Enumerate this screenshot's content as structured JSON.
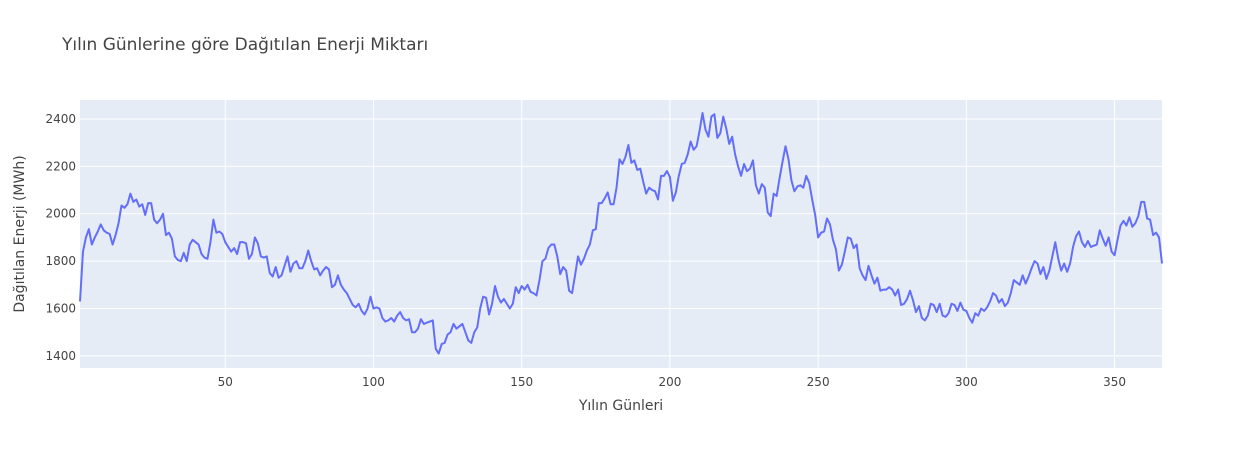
{
  "chart_data": {
    "type": "line",
    "title": "Yılın Günlerine göre Dağıtılan Enerji Miktarı",
    "x_label": "Yılın Günleri",
    "y_label": "Dağıtılan Enerji (MWh)",
    "xlim": [
      1,
      366
    ],
    "xticks": [
      50,
      100,
      150,
      200,
      250,
      300,
      350
    ],
    "ylim": [
      1349,
      2480
    ],
    "yticks": [
      1400,
      1600,
      1800,
      2000,
      2200,
      2400
    ],
    "grid": true,
    "x": [
      1,
      2,
      3,
      4,
      5,
      6,
      7,
      8,
      9,
      10,
      11,
      12,
      13,
      14,
      15,
      16,
      17,
      18,
      19,
      20,
      21,
      22,
      23,
      24,
      25,
      26,
      27,
      28,
      29,
      30,
      31,
      32,
      33,
      34,
      35,
      36,
      37,
      38,
      39,
      40,
      41,
      42,
      43,
      44,
      45,
      46,
      47,
      48,
      49,
      50,
      51,
      52,
      53,
      54,
      55,
      56,
      57,
      58,
      59,
      60,
      61,
      62,
      63,
      64,
      65,
      66,
      67,
      68,
      69,
      70,
      71,
      72,
      73,
      74,
      75,
      76,
      77,
      78,
      79,
      80,
      81,
      82,
      83,
      84,
      85,
      86,
      87,
      88,
      89,
      90,
      91,
      92,
      93,
      94,
      95,
      96,
      97,
      98,
      99,
      100,
      101,
      102,
      103,
      104,
      105,
      106,
      107,
      108,
      109,
      110,
      111,
      112,
      113,
      114,
      115,
      116,
      117,
      118,
      119,
      120,
      121,
      122,
      123,
      124,
      125,
      126,
      127,
      128,
      129,
      130,
      131,
      132,
      133,
      134,
      135,
      136,
      137,
      138,
      139,
      140,
      141,
      142,
      143,
      144,
      145,
      146,
      147,
      148,
      149,
      150,
      151,
      152,
      153,
      154,
      155,
      156,
      157,
      158,
      159,
      160,
      161,
      162,
      163,
      164,
      165,
      166,
      167,
      168,
      169,
      170,
      171,
      172,
      173,
      174,
      175,
      176,
      177,
      178,
      179,
      180,
      181,
      182,
      183,
      184,
      185,
      186,
      187,
      188,
      189,
      190,
      191,
      192,
      193,
      194,
      195,
      196,
      197,
      198,
      199,
      200,
      201,
      202,
      203,
      204,
      205,
      206,
      207,
      208,
      209,
      210,
      211,
      212,
      213,
      214,
      215,
      216,
      217,
      218,
      219,
      220,
      221,
      222,
      223,
      224,
      225,
      226,
      227,
      228,
      229,
      230,
      231,
      232,
      233,
      234,
      235,
      236,
      237,
      238,
      239,
      240,
      241,
      242,
      243,
      244,
      245,
      246,
      247,
      248,
      249,
      250,
      251,
      252,
      253,
      254,
      255,
      256,
      257,
      258,
      259,
      260,
      261,
      262,
      263,
      264,
      265,
      266,
      267,
      268,
      269,
      270,
      271,
      272,
      273,
      274,
      275,
      276,
      277,
      278,
      279,
      280,
      281,
      282,
      283,
      284,
      285,
      286,
      287,
      288,
      289,
      290,
      291,
      292,
      293,
      294,
      295,
      296,
      297,
      298,
      299,
      300,
      301,
      302,
      303,
      304,
      305,
      306,
      307,
      308,
      309,
      310,
      311,
      312,
      313,
      314,
      315,
      316,
      317,
      318,
      319,
      320,
      321,
      322,
      323,
      324,
      325,
      326,
      327,
      328,
      329,
      330,
      331,
      332,
      333,
      334,
      335,
      336,
      337,
      338,
      339,
      340,
      341,
      342,
      343,
      344,
      345,
      346,
      347,
      348,
      349,
      350,
      351,
      352,
      353,
      354,
      355,
      356,
      357,
      358,
      359,
      360,
      361,
      362,
      363,
      364,
      365,
      366
    ],
    "series": [
      {
        "color": "#636efa",
        "values": [
          1630,
          1840,
          1900,
          1935,
          1870,
          1900,
          1925,
          1955,
          1930,
          1920,
          1915,
          1870,
          1910,
          1960,
          2035,
          2025,
          2040,
          2085,
          2050,
          2060,
          2030,
          2040,
          1995,
          2045,
          2045,
          1975,
          1960,
          1975,
          2000,
          1910,
          1920,
          1895,
          1820,
          1805,
          1800,
          1835,
          1800,
          1870,
          1890,
          1880,
          1870,
          1830,
          1815,
          1810,
          1880,
          1975,
          1920,
          1925,
          1915,
          1880,
          1860,
          1840,
          1855,
          1830,
          1880,
          1880,
          1875,
          1810,
          1830,
          1900,
          1875,
          1820,
          1815,
          1820,
          1750,
          1735,
          1775,
          1730,
          1740,
          1780,
          1820,
          1755,
          1790,
          1800,
          1770,
          1770,
          1800,
          1845,
          1800,
          1765,
          1770,
          1740,
          1760,
          1775,
          1765,
          1690,
          1700,
          1740,
          1700,
          1680,
          1665,
          1640,
          1615,
          1605,
          1620,
          1590,
          1575,
          1600,
          1650,
          1600,
          1605,
          1600,
          1560,
          1545,
          1550,
          1560,
          1545,
          1570,
          1585,
          1560,
          1550,
          1555,
          1500,
          1500,
          1515,
          1555,
          1535,
          1540,
          1545,
          1550,
          1430,
          1410,
          1450,
          1455,
          1490,
          1500,
          1535,
          1515,
          1525,
          1535,
          1500,
          1465,
          1455,
          1500,
          1520,
          1600,
          1650,
          1645,
          1575,
          1620,
          1695,
          1650,
          1625,
          1640,
          1620,
          1600,
          1620,
          1690,
          1665,
          1695,
          1680,
          1700,
          1670,
          1665,
          1655,
          1720,
          1800,
          1810,
          1855,
          1870,
          1870,
          1820,
          1745,
          1775,
          1760,
          1675,
          1665,
          1740,
          1820,
          1785,
          1810,
          1845,
          1870,
          1930,
          1935,
          2045,
          2045,
          2065,
          2090,
          2040,
          2040,
          2110,
          2230,
          2210,
          2240,
          2290,
          2215,
          2225,
          2185,
          2190,
          2135,
          2085,
          2110,
          2100,
          2095,
          2060,
          2160,
          2160,
          2180,
          2155,
          2055,
          2090,
          2160,
          2210,
          2215,
          2250,
          2305,
          2270,
          2285,
          2350,
          2425,
          2355,
          2325,
          2410,
          2420,
          2320,
          2340,
          2410,
          2360,
          2295,
          2325,
          2250,
          2200,
          2160,
          2210,
          2180,
          2190,
          2225,
          2120,
          2085,
          2125,
          2110,
          2005,
          1990,
          2085,
          2075,
          2150,
          2220,
          2285,
          2230,
          2140,
          2095,
          2115,
          2120,
          2110,
          2160,
          2130,
          2060,
          1995,
          1900,
          1920,
          1925,
          1980,
          1955,
          1890,
          1850,
          1760,
          1785,
          1840,
          1900,
          1895,
          1855,
          1870,
          1770,
          1740,
          1720,
          1780,
          1740,
          1705,
          1730,
          1675,
          1680,
          1680,
          1690,
          1680,
          1655,
          1680,
          1615,
          1620,
          1640,
          1675,
          1635,
          1585,
          1610,
          1560,
          1550,
          1570,
          1620,
          1615,
          1585,
          1620,
          1570,
          1565,
          1580,
          1620,
          1615,
          1590,
          1625,
          1595,
          1590,
          1560,
          1540,
          1580,
          1570,
          1600,
          1590,
          1605,
          1630,
          1665,
          1655,
          1625,
          1640,
          1610,
          1625,
          1665,
          1720,
          1710,
          1700,
          1740,
          1705,
          1735,
          1770,
          1800,
          1790,
          1745,
          1775,
          1725,
          1760,
          1820,
          1880,
          1810,
          1760,
          1790,
          1755,
          1790,
          1860,
          1905,
          1925,
          1880,
          1860,
          1885,
          1860,
          1865,
          1870,
          1930,
          1895,
          1865,
          1900,
          1840,
          1825,
          1890,
          1950,
          1970,
          1950,
          1985,
          1945,
          1960,
          1990,
          2050,
          2050,
          1980,
          1975,
          1910,
          1920,
          1900,
          1790
        ]
      }
    ]
  }
}
